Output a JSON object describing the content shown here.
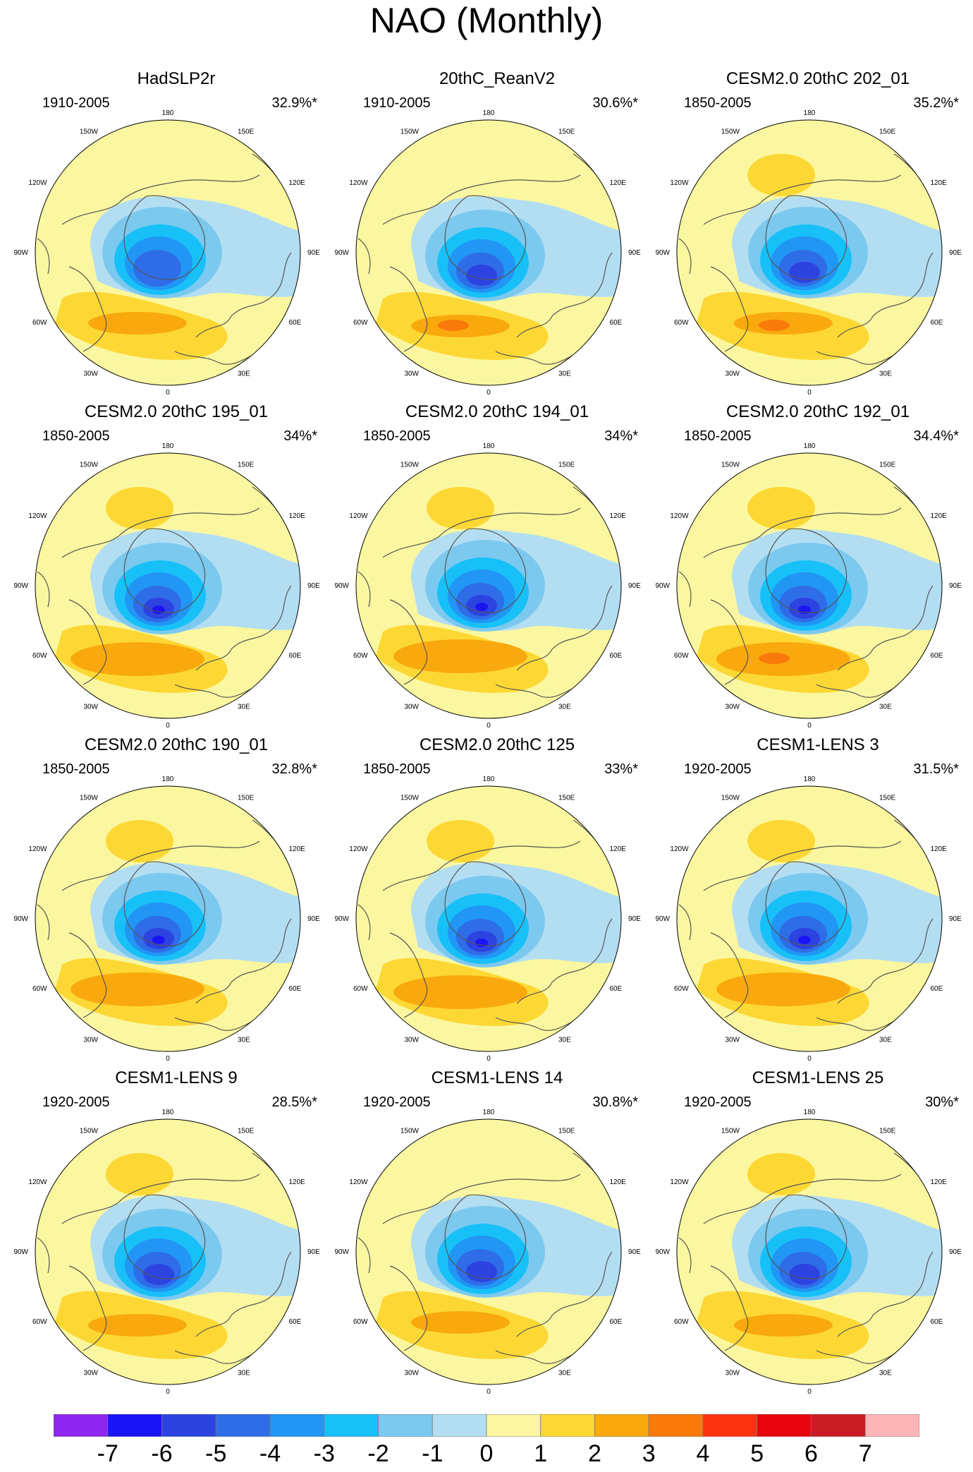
{
  "figure": {
    "title": "NAO (Monthly)"
  },
  "panels": [
    {
      "title": "HadSLP2r",
      "years": "1910-2005",
      "variance": "32.9%*"
    },
    {
      "title": "20thC_ReanV2",
      "years": "1910-2005",
      "variance": "30.6%*"
    },
    {
      "title": "CESM2.0 20thC 202_01",
      "years": "1850-2005",
      "variance": "35.2%*"
    },
    {
      "title": "CESM2.0 20thC 195_01",
      "years": "1850-2005",
      "variance": "34%*"
    },
    {
      "title": "CESM2.0 20thC 194_01",
      "years": "1850-2005",
      "variance": "34%*"
    },
    {
      "title": "CESM2.0 20thC 192_01",
      "years": "1850-2005",
      "variance": "34.4%*"
    },
    {
      "title": "CESM2.0 20thC 190_01",
      "years": "1850-2005",
      "variance": "32.8%*"
    },
    {
      "title": "CESM2.0 20thC 125",
      "years": "1850-2005",
      "variance": "33%*"
    },
    {
      "title": "CESM1-LENS 3",
      "years": "1920-2005",
      "variance": "31.5%*"
    },
    {
      "title": "CESM1-LENS 9",
      "years": "1920-2005",
      "variance": "28.5%*"
    },
    {
      "title": "CESM1-LENS 14",
      "years": "1920-2005",
      "variance": "30.8%*"
    },
    {
      "title": "CESM1-LENS 25",
      "years": "1920-2005",
      "variance": "30%*"
    }
  ],
  "longitude_labels": [
    "180",
    "150E",
    "120E",
    "90E",
    "60E",
    "30E",
    "0",
    "30W",
    "60W",
    "90W",
    "120W",
    "150W"
  ],
  "colorbar": {
    "labels": [
      "-7",
      "-6",
      "-5",
      "-4",
      "-3",
      "-2",
      "-1",
      "0",
      "1",
      "2",
      "3",
      "4",
      "5",
      "6",
      "7"
    ],
    "colors": [
      "#8d26f0",
      "#1b14f5",
      "#2d43e0",
      "#2f6de8",
      "#2196f5",
      "#18c0f8",
      "#7cc9f0",
      "#b3def2",
      "#fbf7a0",
      "#fdd835",
      "#f9a90d",
      "#f97a0b",
      "#fc3311",
      "#e8030e",
      "#c81d22",
      "#fbb6b5"
    ]
  }
}
